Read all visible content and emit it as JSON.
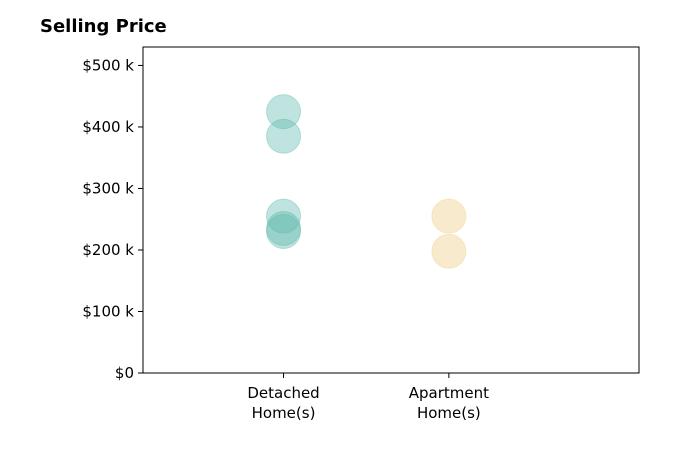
{
  "chart_data": {
    "type": "scatter",
    "title": "Selling Price",
    "xlabel": "",
    "ylabel": "",
    "categories": [
      {
        "line1": "Detached",
        "line2": "Home(s)"
      },
      {
        "line1": "Apartment",
        "line2": "Home(s)"
      }
    ],
    "xlim": [
      -0.85,
      2.15
    ],
    "ylim": [
      0,
      530000
    ],
    "y_ticks": [
      {
        "value": 0,
        "label": "$0"
      },
      {
        "value": 100000,
        "label": "$100 k"
      },
      {
        "value": 200000,
        "label": "$200 k"
      },
      {
        "value": 300000,
        "label": "$300 k"
      },
      {
        "value": 400000,
        "label": "$400 k"
      },
      {
        "value": 500000,
        "label": "$500 k"
      }
    ],
    "series": [
      {
        "category_index": 0,
        "color": "#5fb8ad",
        "opacity": 0.4,
        "values": [
          425000,
          385000,
          255000,
          235000,
          230000
        ]
      },
      {
        "category_index": 1,
        "color": "#f3d9a3",
        "opacity": 0.55,
        "values": [
          255000,
          198000
        ]
      }
    ],
    "grid": false,
    "legend": "none"
  }
}
